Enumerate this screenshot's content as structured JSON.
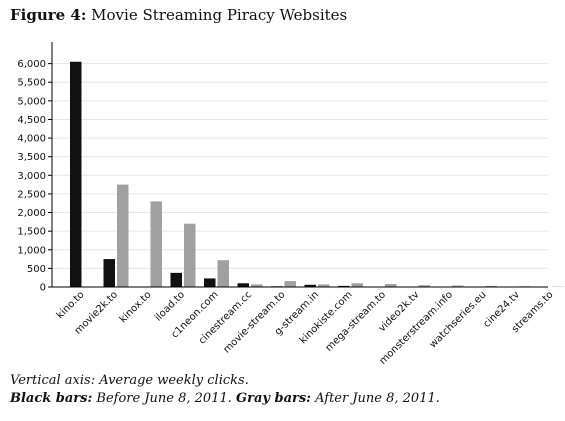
{
  "figure": {
    "label": "Figure 4:",
    "title": "Movie Streaming Piracy Websites"
  },
  "caption": {
    "line1": "Vertical axis: Average weekly clicks.",
    "black_label": "Black bars:",
    "black_text": "Before June 8, 2011.",
    "gray_label": "Gray bars:",
    "gray_text": "After June 8, 2011."
  },
  "colors": {
    "before": "#111111",
    "after": "#a0a0a0",
    "grid": "#e6e6e6",
    "axis": "#000000"
  },
  "chart_data": {
    "type": "bar",
    "title": "Movie Streaming Piracy Websites",
    "xlabel": "",
    "ylabel": "",
    "ylim": [
      0,
      6500
    ],
    "yticks": [
      0,
      500,
      1000,
      1500,
      2000,
      2500,
      3000,
      3500,
      4000,
      4500,
      5000,
      5500,
      6000
    ],
    "ytick_labels": [
      "0",
      "500",
      "1,000",
      "1,500",
      "2,000",
      "2,500",
      "3,000",
      "3,500",
      "4,000",
      "4,500",
      "5,000",
      "5,500",
      "6,000"
    ],
    "grid": true,
    "legend": "none",
    "categories": [
      "kino.to",
      "movie2k.to",
      "kinox.to",
      "iload.to",
      "c1neon.com",
      "cinestream.cc",
      "movie-stream.to",
      "g-stream.in",
      "kinokiste.com",
      "mega-stream.to",
      "video2k.tv",
      "monsterstream.info",
      "watchseries.eu",
      "cine24.tv",
      "streams.to"
    ],
    "series": [
      {
        "values": [
          6050,
          750,
          0,
          380,
          230,
          100,
          20,
          60,
          30,
          10,
          5,
          5,
          5,
          5,
          0
        ]
      },
      {
        "values": [
          0,
          2750,
          2300,
          1700,
          720,
          70,
          160,
          70,
          100,
          80,
          50,
          40,
          30,
          20,
          10
        ]
      }
    ]
  }
}
